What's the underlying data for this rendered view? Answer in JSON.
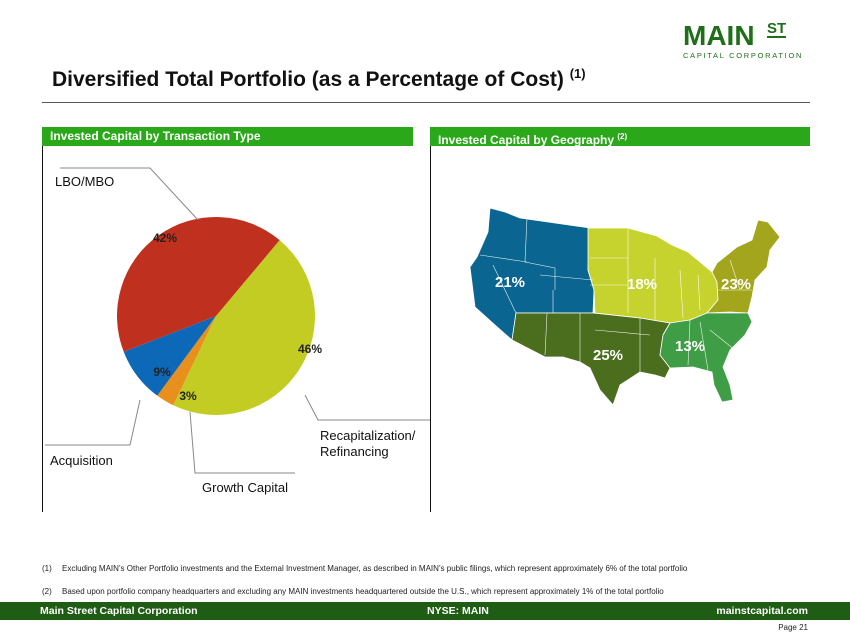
{
  "logo": {
    "main": "MAIN",
    "st": "ST",
    "sub": "CAPITAL CORPORATION"
  },
  "title": {
    "text": "Diversified Total Portfolio (as a Percentage of Cost)",
    "note": "(1)"
  },
  "left_panel": {
    "header": "Invested Capital by Transaction Type"
  },
  "right_panel": {
    "header": "Invested Capital by Geography",
    "note": "(2)"
  },
  "chart_data": [
    {
      "type": "pie",
      "categories": [
        "Recapitalization/ Refinancing",
        "Growth Capital",
        "Acquisition",
        "LBO/MBO"
      ],
      "values": [
        46,
        3,
        9,
        42
      ],
      "labels": [
        "46%",
        "3%",
        "9%",
        "42%"
      ],
      "colors": [
        "#c3cc22",
        "#e8901e",
        "#0d68b8",
        "#c0301e"
      ]
    },
    {
      "type": "map",
      "regions": [
        "West",
        "Midwest",
        "Northeast",
        "Southwest",
        "Southeast"
      ],
      "values": [
        21,
        18,
        23,
        25,
        13
      ],
      "labels": [
        "21%",
        "18%",
        "23%",
        "25%",
        "13%"
      ],
      "colors": [
        "#0a6690",
        "#c6d32e",
        "#a3a51c",
        "#4a6e1e",
        "#3f9e45"
      ]
    }
  ],
  "pie_labels": {
    "lbo": "LBO/MBO",
    "acq": "Acquisition",
    "growth": "Growth Capital",
    "recap1": "Recapitalization/",
    "recap2": "Refinancing"
  },
  "footnotes": [
    {
      "n": "(1)",
      "text": "Excluding MAIN’s Other Portfolio investments and the External Investment Manager, as described in MAIN’s public filings, which represent approximately 6% of the total portfolio"
    },
    {
      "n": "(2)",
      "text": "Based upon portfolio company headquarters and excluding any MAIN investments headquartered outside the U.S., which represent approximately 1% of the total portfolio"
    }
  ],
  "footer": {
    "left": "Main Street Capital Corporation",
    "center": "NYSE: MAIN",
    "right": "mainstcapital.com",
    "page": "Page  21"
  }
}
